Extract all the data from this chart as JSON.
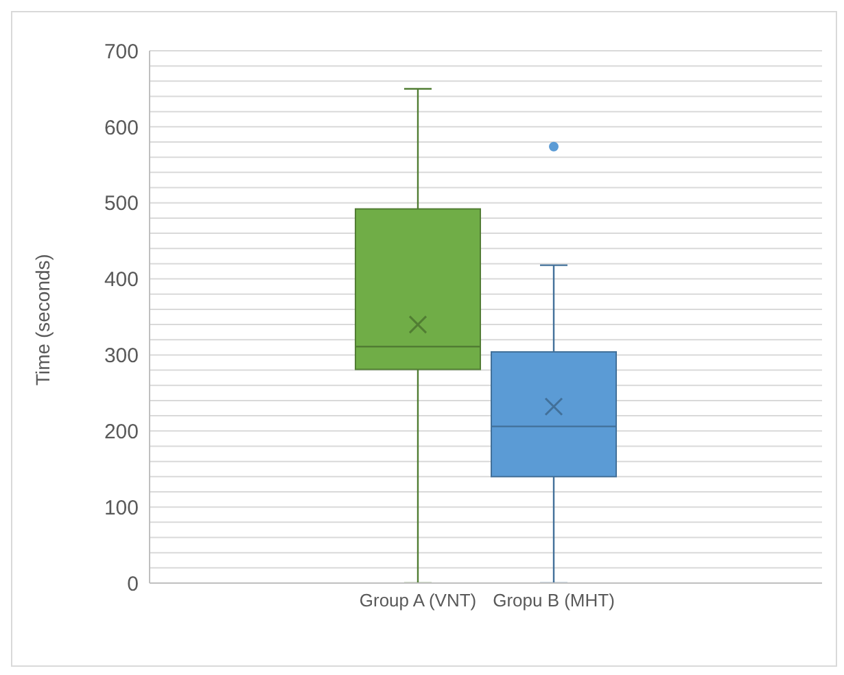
{
  "chart_data": {
    "type": "box",
    "categories": [
      "Group A (VNT)",
      "Gropu B (MHT)"
    ],
    "colors": [
      "#70ad47",
      "#5b9bd5"
    ],
    "boxes": [
      {
        "low": 0,
        "q1": 281,
        "median": 311,
        "q3": 492,
        "high": 650,
        "mean": 340
      },
      {
        "low": 0,
        "q1": 140,
        "median": 206,
        "q3": 304,
        "high": 418,
        "mean": 232,
        "outliers": [
          574
        ]
      }
    ],
    "ylabel": "Time (seconds)",
    "ylim": [
      0,
      700
    ],
    "yticks": [
      0,
      {
        "value": 20,
        "label": null
      },
      {
        "value": 40,
        "label": null
      },
      {
        "value": 60,
        "label": null
      },
      {
        "value": 80,
        "label": null
      },
      100,
      {
        "value": 120,
        "label": null
      },
      {
        "value": 140,
        "label": null
      },
      {
        "value": 160,
        "label": null
      },
      {
        "value": 180,
        "label": null
      },
      200,
      {
        "value": 220,
        "label": null
      },
      {
        "value": 240,
        "label": null
      },
      {
        "value": 260,
        "label": null
      },
      {
        "value": 280,
        "label": null
      },
      300,
      {
        "value": 320,
        "label": null
      },
      {
        "value": 340,
        "label": null
      },
      {
        "value": 360,
        "label": null
      },
      {
        "value": 380,
        "label": null
      },
      400,
      {
        "value": 420,
        "label": null
      },
      {
        "value": 440,
        "label": null
      },
      {
        "value": 460,
        "label": null
      },
      {
        "value": 480,
        "label": null
      },
      500,
      {
        "value": 520,
        "label": null
      },
      {
        "value": 540,
        "label": null
      },
      {
        "value": 560,
        "label": null
      },
      {
        "value": 580,
        "label": null
      },
      600,
      {
        "value": 620,
        "label": null
      },
      {
        "value": 640,
        "label": null
      },
      {
        "value": 660,
        "label": null
      },
      {
        "value": 680,
        "label": null
      },
      700
    ],
    "grid": "y"
  }
}
